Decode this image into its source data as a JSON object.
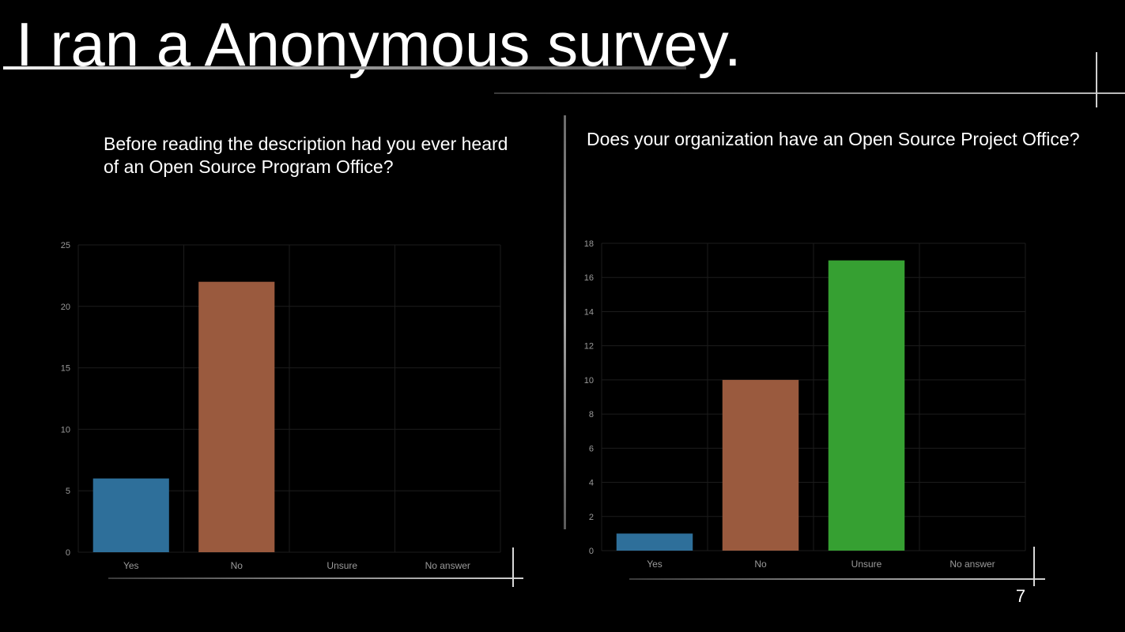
{
  "slide": {
    "title": "I ran a Anonymous survey.",
    "page_number": "7"
  },
  "colors": {
    "background": "#000000",
    "text": "#ffffff",
    "axis_text": "#9a9a9a",
    "grid": "#1c1c1c"
  },
  "chart_data": [
    {
      "type": "bar",
      "title": "Before reading the description had you ever heard of an Open Source Program Office?",
      "categories": [
        "Yes",
        "No",
        "Unsure",
        "No answer"
      ],
      "values": [
        6,
        22,
        0,
        0
      ],
      "bar_colors": [
        "#2e6f9a",
        "#9a5a3e",
        "#36a032",
        "#888888"
      ],
      "ylim": [
        0,
        25
      ],
      "yticks": [
        0,
        5,
        10,
        15,
        20,
        25
      ],
      "grid": true,
      "legend": "none"
    },
    {
      "type": "bar",
      "title": "Does your organization have an Open Source Project Office?",
      "categories": [
        "Yes",
        "No",
        "Unsure",
        "No answer"
      ],
      "values": [
        1,
        10,
        17,
        0
      ],
      "bar_colors": [
        "#2e6f9a",
        "#9a5a3e",
        "#36a032",
        "#888888"
      ],
      "ylim": [
        0,
        18
      ],
      "yticks": [
        0,
        2,
        4,
        6,
        8,
        10,
        12,
        14,
        16,
        18
      ],
      "grid": true,
      "legend": "none"
    }
  ]
}
